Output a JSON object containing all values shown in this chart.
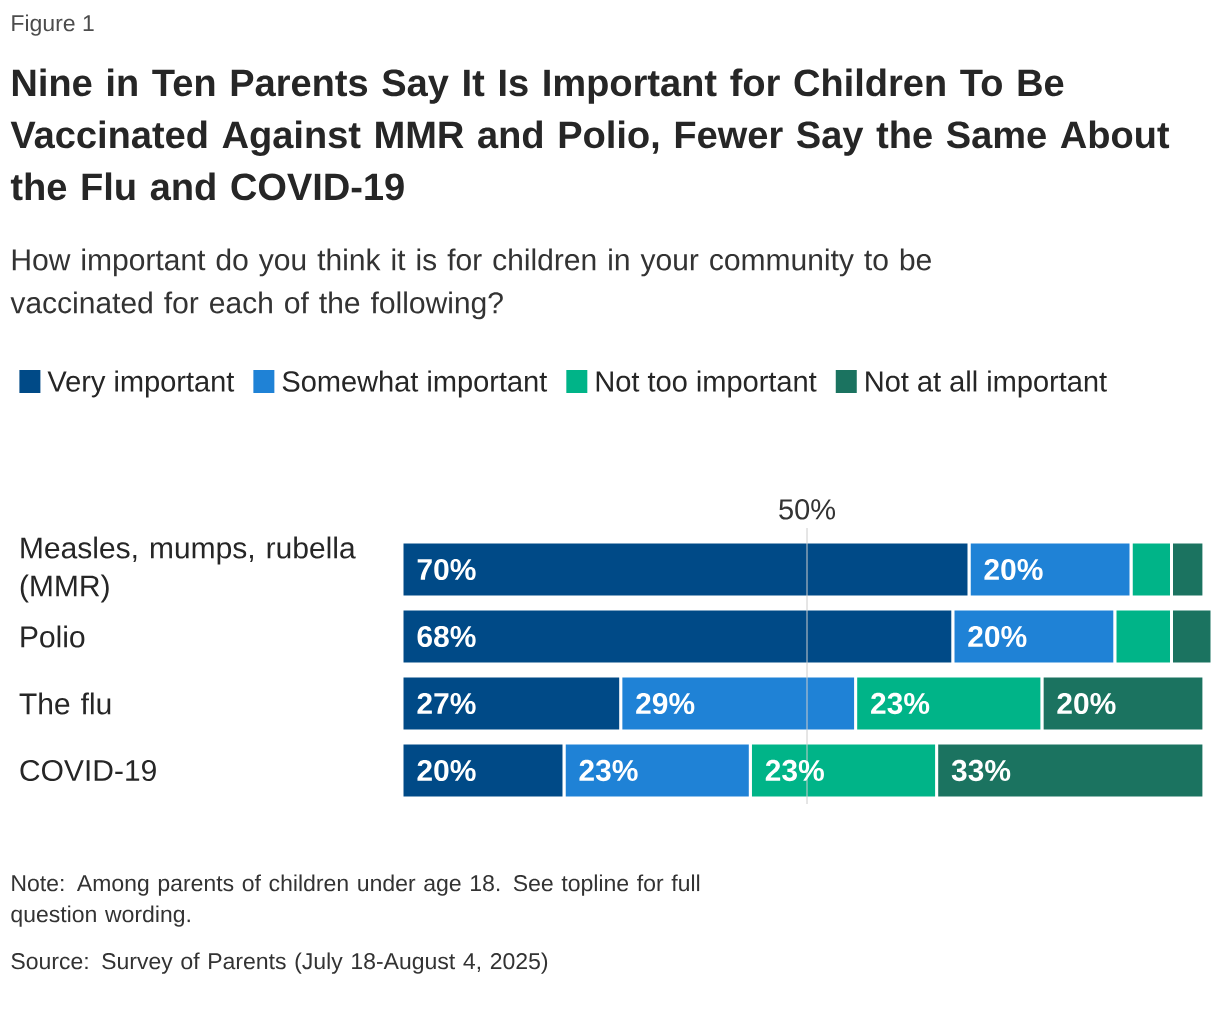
{
  "chart_data": {
    "type": "bar",
    "orientation": "horizontal",
    "stacked": true,
    "title": "Nine in Ten Parents Say It Is Important for Children To Be Vaccinated Against MMR and Polio, Fewer Say the Same About the Flu and COVID-19",
    "subtitle": "How important do you think it is for children in your community to be vaccinated for each of the following?",
    "categories": [
      "Measles, mumps, rubella (MMR)",
      "Polio",
      "The flu",
      "COVID-19"
    ],
    "series": [
      {
        "name": "Very important",
        "color": "#004a87",
        "values": [
          70,
          68,
          27,
          20
        ],
        "value_labels": [
          "70%",
          "68%",
          "27%",
          "20%"
        ]
      },
      {
        "name": "Somewhat important",
        "color": "#1f82d6",
        "values": [
          20,
          20,
          29,
          23
        ],
        "value_labels": [
          "20%",
          "20%",
          "29%",
          "23%"
        ]
      },
      {
        "name": "Not too important",
        "color": "#00b488",
        "values": [
          5,
          7,
          23,
          23
        ],
        "value_labels": [
          null,
          null,
          "23%",
          "23%"
        ]
      },
      {
        "name": "Not at all important",
        "color": "#1b7360",
        "values": [
          4,
          5,
          20,
          33
        ],
        "value_labels": [
          null,
          null,
          "20%",
          "33%"
        ]
      }
    ],
    "xlim": [
      0,
      100
    ],
    "ref_lines": [
      {
        "axis": "x",
        "value": 50,
        "label": "50%"
      }
    ],
    "legend": "top",
    "tick_labels": "y",
    "annotations": [
      "Figure 1",
      "Note: Among parents of children under age 18. See topline for full question wording.",
      "Source: Survey of Parents (July 18-August 4, 2025)"
    ]
  }
}
